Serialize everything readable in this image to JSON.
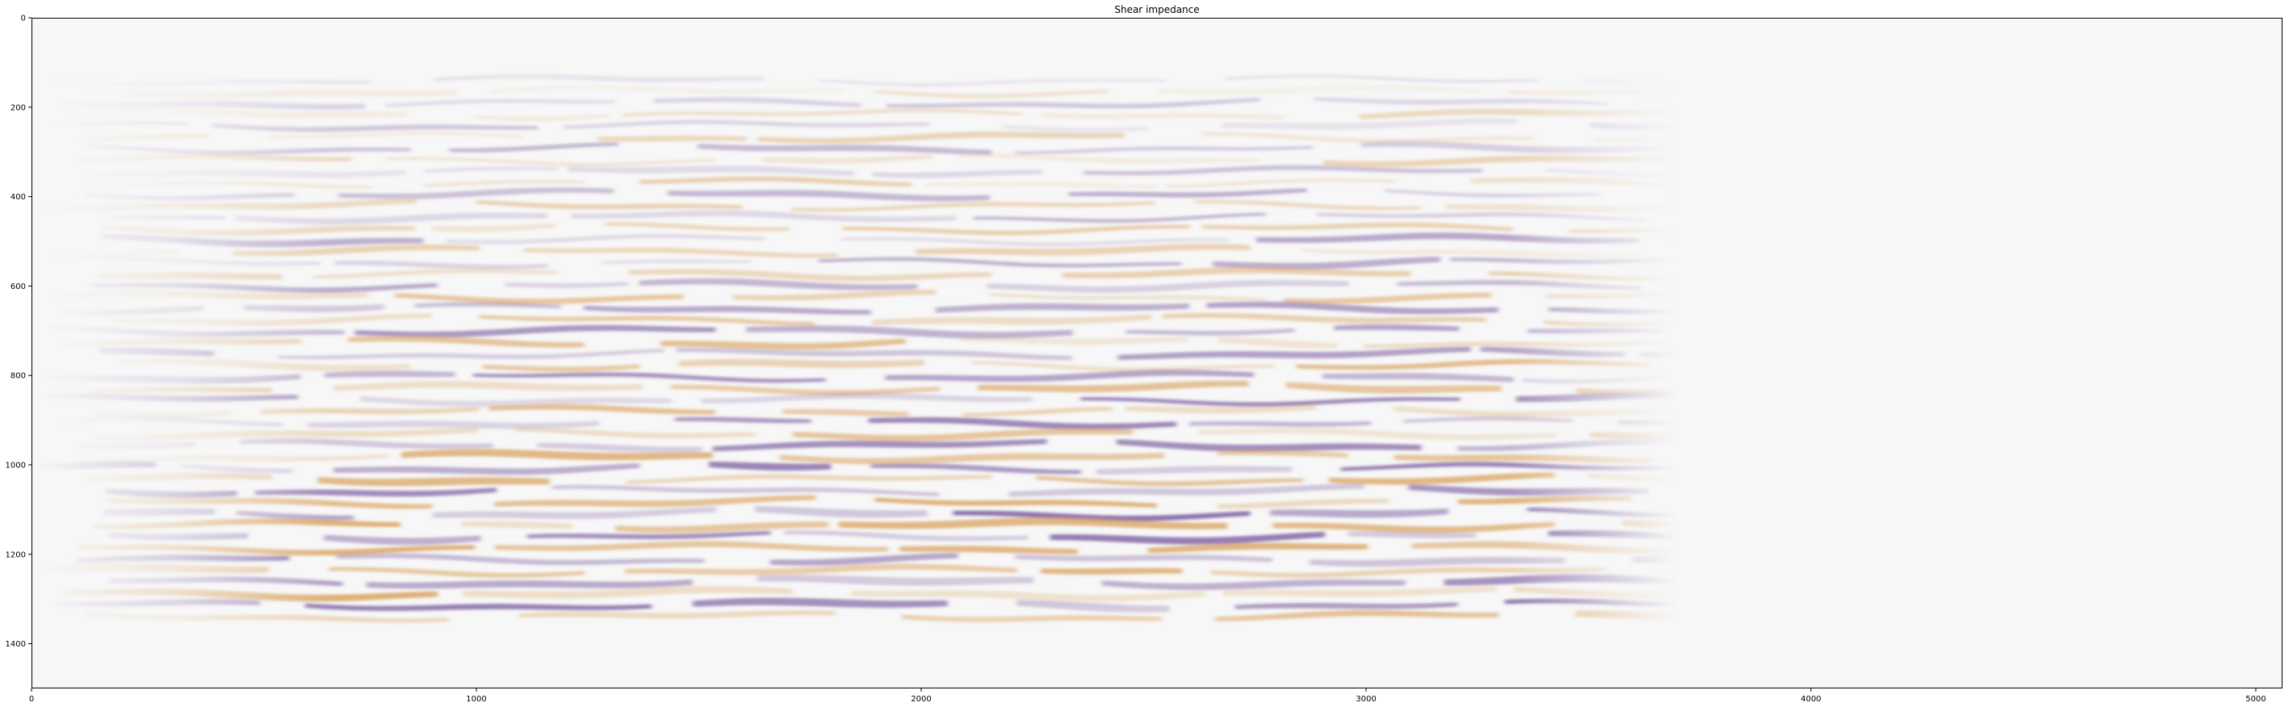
{
  "chart_data": {
    "type": "heatmap",
    "title": "Shear impedance",
    "xlabel": "",
    "ylabel": "",
    "xlim": [
      0,
      5060
    ],
    "ylim": [
      1500,
      0
    ],
    "x_ticks": [
      0,
      1000,
      2000,
      3000,
      4000,
      5000
    ],
    "y_ticks": [
      0,
      200,
      400,
      600,
      800,
      1000,
      1200,
      1400
    ],
    "grid": false,
    "colormap": "PuOr",
    "colors": {
      "negative": "#7b5ea0",
      "positive": "#d9a25e",
      "neutral": "#f7f7f7"
    },
    "data_extent": {
      "x": [
        0,
        3700
      ],
      "y": [
        130,
        1350
      ]
    }
  }
}
